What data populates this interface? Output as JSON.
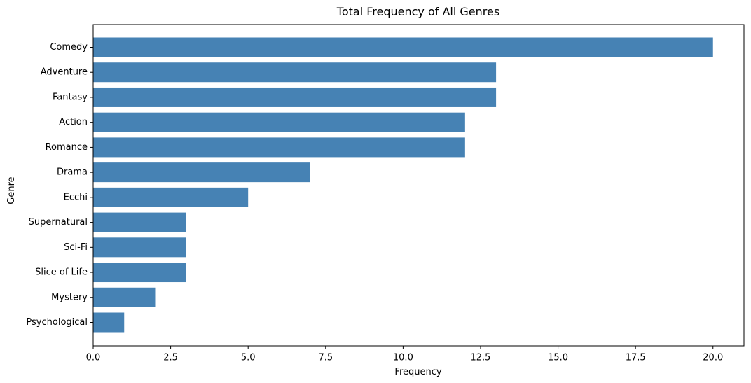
{
  "chart_data": {
    "type": "bar",
    "orientation": "horizontal",
    "title": "Total Frequency of All Genres",
    "xlabel": "Frequency",
    "ylabel": "Genre",
    "categories": [
      "Comedy",
      "Adventure",
      "Fantasy",
      "Action",
      "Romance",
      "Drama",
      "Ecchi",
      "Supernatural",
      "Sci-Fi",
      "Slice of Life",
      "Mystery",
      "Psychological"
    ],
    "values": [
      20,
      13,
      13,
      12,
      12,
      7,
      5,
      3,
      3,
      3,
      2,
      1
    ],
    "xlim": [
      0,
      21
    ],
    "xticks": [
      0,
      2.5,
      5,
      7.5,
      10,
      12.5,
      15,
      17.5,
      20
    ],
    "xtick_labels": [
      "0.0",
      "2.5",
      "5.0",
      "7.5",
      "10.0",
      "12.5",
      "15.0",
      "17.5",
      "20.0"
    ],
    "grid": false,
    "colors": {
      "bar": "#4682b4",
      "axis": "#000000",
      "background": "#ffffff"
    }
  }
}
